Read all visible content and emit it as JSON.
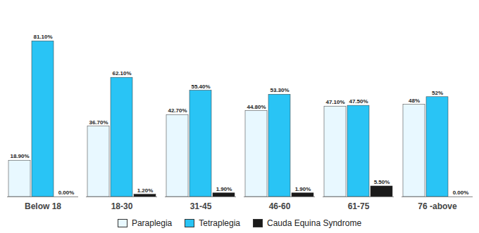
{
  "chart_data": {
    "type": "bar",
    "categories": [
      "Below 18",
      "18-30",
      "31-45",
      "46-60",
      "61-75",
      "76 -above"
    ],
    "series": [
      {
        "name": "Paraplegia",
        "color": "#E8F8FF",
        "values": [
          18.9,
          36.7,
          42.7,
          44.8,
          47.1,
          48.0
        ],
        "value_labels": [
          "18.90%",
          "36.70%",
          "42.70%",
          "44.80%",
          "47.10%",
          "48%"
        ]
      },
      {
        "name": "Tetraplegia",
        "color": "#29C4F5",
        "values": [
          81.1,
          62.1,
          55.4,
          53.3,
          47.5,
          52.0
        ],
        "value_labels": [
          "81.10%",
          "62.10%",
          "55.40%",
          "53.30%",
          "47.50%",
          "52%"
        ]
      },
      {
        "name": "Cauda Equina Syndrome",
        "color": "#1a1a1a",
        "values": [
          0.0,
          1.2,
          1.9,
          1.9,
          5.5,
          0.0
        ],
        "value_labels": [
          "0.00%",
          "1.20%",
          "1.90%",
          "1.90%",
          "5.50%",
          "0.00%"
        ]
      }
    ],
    "ylim": [
      0,
      98
    ],
    "data_labels": true,
    "tick_labels": "x",
    "legend": "bottom",
    "grid": false
  }
}
